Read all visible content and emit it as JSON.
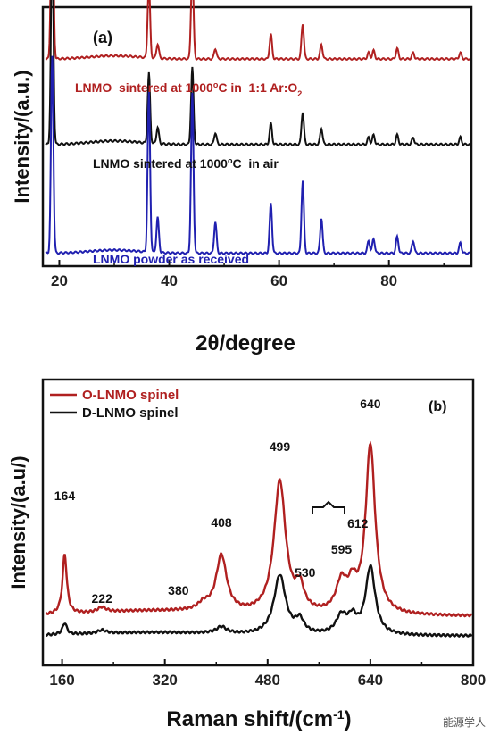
{
  "chart_data": [
    {
      "type": "line",
      "panel_label": "(a)",
      "xlabel": "2θ/degree",
      "ylabel": "Intensity/(a.u.)",
      "xlim": [
        17,
        95
      ],
      "xticks": [
        20,
        40,
        60,
        80
      ],
      "peaks_2theta": [
        18.7,
        36.3,
        37.9,
        44.2,
        48.4,
        58.5,
        64.3,
        67.7,
        76.3,
        77.2,
        81.5,
        84.4,
        93.0
      ],
      "series": [
        {
          "name": "LNMO sintered at 1000ºC in 1:1 Ar:O2",
          "color": "#b02020",
          "baseline": 0.8,
          "intensity": [
            1.0,
            0.36,
            0.07,
            0.45,
            0.05,
            0.12,
            0.17,
            0.07,
            0.03,
            0.04,
            0.05,
            0.03,
            0.03
          ]
        },
        {
          "name": "LNMO sintered at 1000ºC in air",
          "color": "#111111",
          "baseline": 0.47,
          "intensity": [
            0.9,
            0.3,
            0.07,
            0.33,
            0.05,
            0.09,
            0.14,
            0.07,
            0.03,
            0.04,
            0.04,
            0.03,
            0.03
          ]
        },
        {
          "name": "LNMO powder as received",
          "color": "#2020b0",
          "baseline": 0.05,
          "intensity": [
            0.95,
            0.77,
            0.17,
            0.77,
            0.15,
            0.24,
            0.35,
            0.17,
            0.06,
            0.07,
            0.08,
            0.06,
            0.05
          ]
        }
      ]
    },
    {
      "type": "line",
      "panel_label": "(b)",
      "xlabel": "Raman shift/(cm-1)",
      "ylabel": "Intensity/(a.u/)",
      "xlim": [
        130,
        800
      ],
      "xticks": [
        160,
        320,
        480,
        640,
        800
      ],
      "legend_position": "top-left",
      "series": [
        {
          "name": "O-LNMO spinel",
          "color": "#b02020",
          "peaks": [
            {
              "x": 164,
              "height": 0.36
            },
            {
              "x": 222,
              "height": 0.03
            },
            {
              "x": 380,
              "height": 0.04
            },
            {
              "x": 408,
              "height": 0.34
            },
            {
              "x": 499,
              "height": 0.8
            },
            {
              "x": 530,
              "height": 0.14
            },
            {
              "x": 595,
              "height": 0.18
            },
            {
              "x": 612,
              "height": 0.14
            },
            {
              "x": 640,
              "height": 1.02
            }
          ]
        },
        {
          "name": "D-LNMO spinel",
          "color": "#111111",
          "peaks": [
            {
              "x": 164,
              "height": 0.07
            },
            {
              "x": 222,
              "height": 0.02
            },
            {
              "x": 408,
              "height": 0.04
            },
            {
              "x": 499,
              "height": 0.36
            },
            {
              "x": 530,
              "height": 0.08
            },
            {
              "x": 595,
              "height": 0.11
            },
            {
              "x": 612,
              "height": 0.09
            },
            {
              "x": 640,
              "height": 0.41
            }
          ]
        }
      ],
      "annotations": [
        {
          "label": "164",
          "x": 164
        },
        {
          "label": "222",
          "x": 222
        },
        {
          "label": "380",
          "x": 380
        },
        {
          "label": "408",
          "x": 408
        },
        {
          "label": "499",
          "x": 499
        },
        {
          "label": "530",
          "x": 530
        },
        {
          "label": "595",
          "x": 595
        },
        {
          "label": "612",
          "x": 612
        },
        {
          "label": "640",
          "x": 640
        }
      ]
    }
  ],
  "watermark": "能源学人"
}
